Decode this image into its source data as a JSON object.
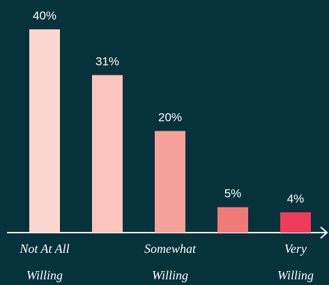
{
  "chart_data": {
    "type": "bar",
    "categories": [
      "Not At All Willing",
      null,
      "Somewhat Willing",
      null,
      "Very Willing"
    ],
    "values": [
      40,
      31,
      20,
      5,
      4
    ],
    "value_labels": [
      "40%",
      "31%",
      "20%",
      "5%",
      "4%"
    ],
    "colors": [
      "#fdd5cf",
      "#fbc4bd",
      "#f5a19a",
      "#f07a78",
      "#ef3b5a"
    ]
  }
}
